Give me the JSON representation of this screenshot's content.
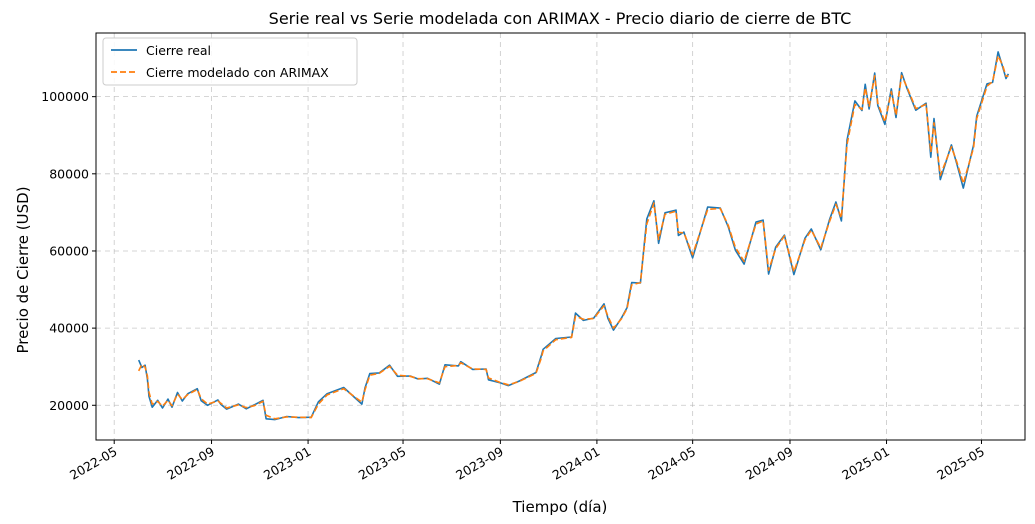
{
  "chart_data": {
    "type": "line",
    "title": "Serie real vs Serie modelada con ARIMAX - Precio diario de cierre de BTC",
    "xlabel": "Tiempo (día)",
    "ylabel": "Precio de Cierre (USD)",
    "grid": true,
    "legend_position": "top-left",
    "xlim": [
      "2022-04-08",
      "2025-06-25"
    ],
    "ylim": [
      11000,
      116500
    ],
    "x_ticks": [
      "2022-05",
      "2022-09",
      "2023-01",
      "2023-05",
      "2023-09",
      "2024-01",
      "2024-05",
      "2024-09",
      "2025-01",
      "2025-05"
    ],
    "y_ticks": [
      20000,
      40000,
      60000,
      80000,
      100000
    ],
    "series": [
      {
        "name": "Cierre real",
        "color": "#1f77b4",
        "style": "solid",
        "points": [
          [
            "2022-06-01",
            31700
          ],
          [
            "2022-06-05",
            29800
          ],
          [
            "2022-06-09",
            30400
          ],
          [
            "2022-06-12",
            26800
          ],
          [
            "2022-06-14",
            22300
          ],
          [
            "2022-06-18",
            19500
          ],
          [
            "2022-06-25",
            21300
          ],
          [
            "2022-07-01",
            19300
          ],
          [
            "2022-07-08",
            21600
          ],
          [
            "2022-07-13",
            19500
          ],
          [
            "2022-07-20",
            23300
          ],
          [
            "2022-07-26",
            21100
          ],
          [
            "2022-08-02",
            23000
          ],
          [
            "2022-08-14",
            24300
          ],
          [
            "2022-08-19",
            21200
          ],
          [
            "2022-08-27",
            20000
          ],
          [
            "2022-09-09",
            21400
          ],
          [
            "2022-09-13",
            20200
          ],
          [
            "2022-09-20",
            19000
          ],
          [
            "2022-10-05",
            20300
          ],
          [
            "2022-10-15",
            19100
          ],
          [
            "2022-10-25",
            20100
          ],
          [
            "2022-11-05",
            21300
          ],
          [
            "2022-11-09",
            16500
          ],
          [
            "2022-11-20",
            16300
          ],
          [
            "2022-12-05",
            17100
          ],
          [
            "2022-12-20",
            16800
          ],
          [
            "2023-01-05",
            16900
          ],
          [
            "2023-01-14",
            20900
          ],
          [
            "2023-01-25",
            23000
          ],
          [
            "2023-02-15",
            24600
          ],
          [
            "2023-03-10",
            20300
          ],
          [
            "2023-03-14",
            24500
          ],
          [
            "2023-03-20",
            28200
          ],
          [
            "2023-04-01",
            28400
          ],
          [
            "2023-04-14",
            30400
          ],
          [
            "2023-04-24",
            27500
          ],
          [
            "2023-05-10",
            27600
          ],
          [
            "2023-05-20",
            26800
          ],
          [
            "2023-06-01",
            27000
          ],
          [
            "2023-06-16",
            25500
          ],
          [
            "2023-06-23",
            30500
          ],
          [
            "2023-07-10",
            30200
          ],
          [
            "2023-07-13",
            31300
          ],
          [
            "2023-07-28",
            29300
          ],
          [
            "2023-08-14",
            29400
          ],
          [
            "2023-08-17",
            26600
          ],
          [
            "2023-09-01",
            25800
          ],
          [
            "2023-09-11",
            25100
          ],
          [
            "2023-09-25",
            26300
          ],
          [
            "2023-10-16",
            28500
          ],
          [
            "2023-10-23",
            33000
          ],
          [
            "2023-10-25",
            34500
          ],
          [
            "2023-11-10",
            37300
          ],
          [
            "2023-11-30",
            37700
          ],
          [
            "2023-12-05",
            43900
          ],
          [
            "2023-12-15",
            42000
          ],
          [
            "2023-12-28",
            42600
          ],
          [
            "2024-01-10",
            46300
          ],
          [
            "2024-01-15",
            42500
          ],
          [
            "2024-01-22",
            39500
          ],
          [
            "2024-02-01",
            42600
          ],
          [
            "2024-02-08",
            45300
          ],
          [
            "2024-02-14",
            51800
          ],
          [
            "2024-02-25",
            51700
          ],
          [
            "2024-03-04",
            68300
          ],
          [
            "2024-03-13",
            73000
          ],
          [
            "2024-03-19",
            62000
          ],
          [
            "2024-03-27",
            69900
          ],
          [
            "2024-04-10",
            70600
          ],
          [
            "2024-04-13",
            64000
          ],
          [
            "2024-04-20",
            64900
          ],
          [
            "2024-05-01",
            58200
          ],
          [
            "2024-05-20",
            71400
          ],
          [
            "2024-06-05",
            71100
          ],
          [
            "2024-06-15",
            66200
          ],
          [
            "2024-06-24",
            60200
          ],
          [
            "2024-07-05",
            56600
          ],
          [
            "2024-07-20",
            67500
          ],
          [
            "2024-07-29",
            68000
          ],
          [
            "2024-08-05",
            54000
          ],
          [
            "2024-08-14",
            61000
          ],
          [
            "2024-08-25",
            64100
          ],
          [
            "2024-09-06",
            53900
          ],
          [
            "2024-09-20",
            63300
          ],
          [
            "2024-09-28",
            65700
          ],
          [
            "2024-10-10",
            60300
          ],
          [
            "2024-10-21",
            68100
          ],
          [
            "2024-10-29",
            72700
          ],
          [
            "2024-11-05",
            67800
          ],
          [
            "2024-11-12",
            88700
          ],
          [
            "2024-11-22",
            98900
          ],
          [
            "2024-12-01",
            96400
          ],
          [
            "2024-12-05",
            103200
          ],
          [
            "2024-12-10",
            96800
          ],
          [
            "2024-12-17",
            106100
          ],
          [
            "2024-12-21",
            97700
          ],
          [
            "2024-12-30",
            92800
          ],
          [
            "2025-01-07",
            102000
          ],
          [
            "2025-01-13",
            94600
          ],
          [
            "2025-01-20",
            106200
          ],
          [
            "2025-01-27",
            102100
          ],
          [
            "2025-02-07",
            96500
          ],
          [
            "2025-02-20",
            98300
          ],
          [
            "2025-02-26",
            84300
          ],
          [
            "2025-03-02",
            94300
          ],
          [
            "2025-03-10",
            78500
          ],
          [
            "2025-03-24",
            87500
          ],
          [
            "2025-03-31",
            82500
          ],
          [
            "2025-04-08",
            76300
          ],
          [
            "2025-04-21",
            87500
          ],
          [
            "2025-04-25",
            94900
          ],
          [
            "2025-05-08",
            103300
          ],
          [
            "2025-05-15",
            103700
          ],
          [
            "2025-05-22",
            111600
          ],
          [
            "2025-05-28",
            107600
          ],
          [
            "2025-06-01",
            104700
          ],
          [
            "2025-06-04",
            105900
          ]
        ]
      },
      {
        "name": "Cierre modelado con ARIMAX",
        "color": "#ff7f0e",
        "style": "dashed",
        "points": [
          [
            "2022-06-01",
            28900
          ],
          [
            "2022-06-05",
            30600
          ],
          [
            "2022-06-09",
            29900
          ],
          [
            "2022-06-12",
            27600
          ],
          [
            "2022-06-14",
            23400
          ],
          [
            "2022-06-18",
            20300
          ],
          [
            "2022-06-25",
            21000
          ],
          [
            "2022-07-01",
            19800
          ],
          [
            "2022-07-08",
            21300
          ],
          [
            "2022-07-13",
            19900
          ],
          [
            "2022-07-20",
            22900
          ],
          [
            "2022-07-26",
            21500
          ],
          [
            "2022-08-02",
            22800
          ],
          [
            "2022-08-14",
            24100
          ],
          [
            "2022-08-19",
            21700
          ],
          [
            "2022-08-27",
            20300
          ],
          [
            "2022-09-09",
            21100
          ],
          [
            "2022-09-13",
            20500
          ],
          [
            "2022-09-20",
            19300
          ],
          [
            "2022-10-05",
            20100
          ],
          [
            "2022-10-15",
            19400
          ],
          [
            "2022-10-25",
            19900
          ],
          [
            "2022-11-05",
            21000
          ],
          [
            "2022-11-09",
            17400
          ],
          [
            "2022-11-20",
            16500
          ],
          [
            "2022-12-05",
            17000
          ],
          [
            "2022-12-20",
            16900
          ],
          [
            "2023-01-05",
            16800
          ],
          [
            "2023-01-14",
            20300
          ],
          [
            "2023-01-25",
            22700
          ],
          [
            "2023-02-15",
            24300
          ],
          [
            "2023-03-10",
            20800
          ],
          [
            "2023-03-14",
            24000
          ],
          [
            "2023-03-20",
            27800
          ],
          [
            "2023-04-01",
            28300
          ],
          [
            "2023-04-14",
            30100
          ],
          [
            "2023-04-24",
            27800
          ],
          [
            "2023-05-10",
            27500
          ],
          [
            "2023-05-20",
            26900
          ],
          [
            "2023-06-01",
            26900
          ],
          [
            "2023-06-16",
            25800
          ],
          [
            "2023-06-23",
            30000
          ],
          [
            "2023-07-10",
            30300
          ],
          [
            "2023-07-13",
            31000
          ],
          [
            "2023-07-28",
            29400
          ],
          [
            "2023-08-14",
            29300
          ],
          [
            "2023-08-17",
            27100
          ],
          [
            "2023-09-01",
            25900
          ],
          [
            "2023-09-11",
            25300
          ],
          [
            "2023-09-25",
            26200
          ],
          [
            "2023-10-16",
            28300
          ],
          [
            "2023-10-23",
            32400
          ],
          [
            "2023-10-25",
            34100
          ],
          [
            "2023-11-10",
            37000
          ],
          [
            "2023-11-30",
            37600
          ],
          [
            "2023-12-05",
            43100
          ],
          [
            "2023-12-15",
            42300
          ],
          [
            "2023-12-28",
            42500
          ],
          [
            "2024-01-10",
            45800
          ],
          [
            "2024-01-15",
            43000
          ],
          [
            "2024-01-22",
            40000
          ],
          [
            "2024-02-01",
            42400
          ],
          [
            "2024-02-08",
            45000
          ],
          [
            "2024-02-14",
            51200
          ],
          [
            "2024-02-25",
            51800
          ],
          [
            "2024-03-04",
            67000
          ],
          [
            "2024-03-13",
            72400
          ],
          [
            "2024-03-19",
            63000
          ],
          [
            "2024-03-27",
            69500
          ],
          [
            "2024-04-10",
            70300
          ],
          [
            "2024-04-13",
            64800
          ],
          [
            "2024-04-20",
            64700
          ],
          [
            "2024-05-01",
            59000
          ],
          [
            "2024-05-20",
            70800
          ],
          [
            "2024-06-05",
            71000
          ],
          [
            "2024-06-15",
            66600
          ],
          [
            "2024-06-24",
            60900
          ],
          [
            "2024-07-05",
            57300
          ],
          [
            "2024-07-20",
            67000
          ],
          [
            "2024-07-29",
            67800
          ],
          [
            "2024-08-05",
            55000
          ],
          [
            "2024-08-14",
            60600
          ],
          [
            "2024-08-25",
            63900
          ],
          [
            "2024-09-06",
            54600
          ],
          [
            "2024-09-20",
            62900
          ],
          [
            "2024-09-28",
            65400
          ],
          [
            "2024-10-10",
            60800
          ],
          [
            "2024-10-21",
            67600
          ],
          [
            "2024-10-29",
            72100
          ],
          [
            "2024-11-05",
            68600
          ],
          [
            "2024-11-12",
            87600
          ],
          [
            "2024-11-22",
            98000
          ],
          [
            "2024-12-01",
            96700
          ],
          [
            "2024-12-05",
            102300
          ],
          [
            "2024-12-10",
            97400
          ],
          [
            "2024-12-17",
            105400
          ],
          [
            "2024-12-21",
            98300
          ],
          [
            "2024-12-30",
            93400
          ],
          [
            "2025-01-07",
            101300
          ],
          [
            "2025-01-13",
            95200
          ],
          [
            "2025-01-20",
            105500
          ],
          [
            "2025-01-27",
            102400
          ],
          [
            "2025-02-07",
            96900
          ],
          [
            "2025-02-20",
            98000
          ],
          [
            "2025-02-26",
            85600
          ],
          [
            "2025-03-02",
            93200
          ],
          [
            "2025-03-10",
            79600
          ],
          [
            "2025-03-24",
            87000
          ],
          [
            "2025-03-31",
            83000
          ],
          [
            "2025-04-08",
            77500
          ],
          [
            "2025-04-21",
            86800
          ],
          [
            "2025-04-25",
            94300
          ],
          [
            "2025-05-08",
            102700
          ],
          [
            "2025-05-15",
            103900
          ],
          [
            "2025-05-22",
            110600
          ],
          [
            "2025-05-28",
            108000
          ],
          [
            "2025-06-01",
            105300
          ],
          [
            "2025-06-04",
            105300
          ]
        ]
      }
    ]
  }
}
